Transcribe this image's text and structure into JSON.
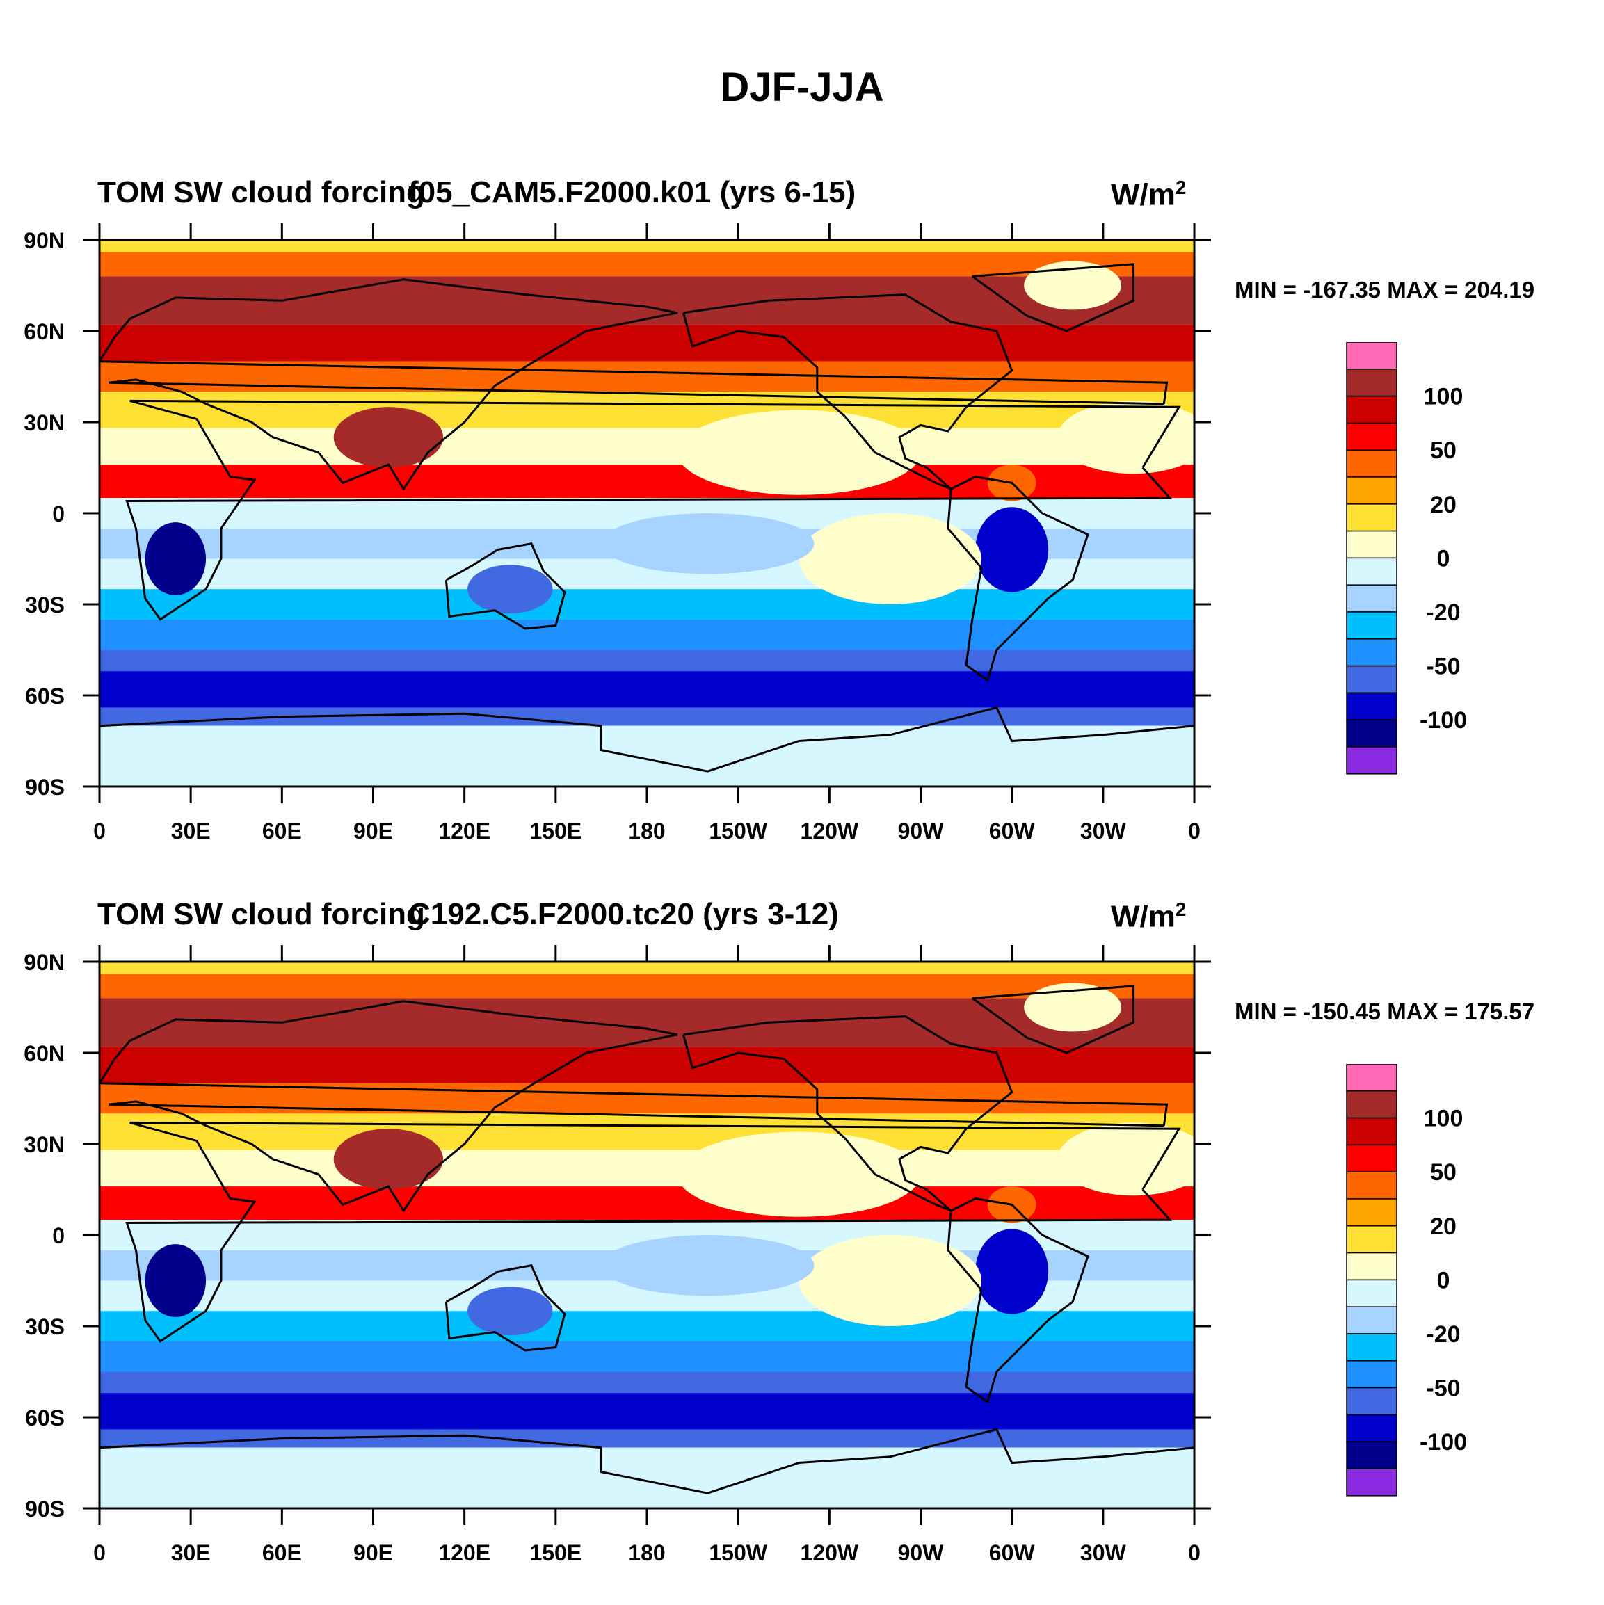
{
  "title": "DJF-JJA",
  "panels": [
    {
      "variable_label": "TOM SW cloud forcing",
      "case_label": "f05_CAM5.F2000.k01 (yrs 6-15)",
      "units": "W/m",
      "units_sup": "2",
      "stats": "MIN = -167.35  MAX = 204.19"
    },
    {
      "variable_label": "TOM SW cloud forcing",
      "case_label": "C192.C5.F2000.tc20 (yrs 3-12)",
      "units": "W/m",
      "units_sup": "2",
      "stats": "MIN = -150.45  MAX = 175.57"
    }
  ],
  "axes": {
    "lat_ticks": [
      "90N",
      "60N",
      "30N",
      "0",
      "30S",
      "60S",
      "90S"
    ],
    "lon_ticks": [
      "0",
      "30E",
      "60E",
      "90E",
      "120E",
      "150E",
      "180",
      "150W",
      "120W",
      "90W",
      "60W",
      "30W",
      "0"
    ]
  },
  "colorbar": {
    "colors": [
      "#ff69b4",
      "#a52a2a",
      "#cd0000",
      "#ff0000",
      "#ff6600",
      "#ffa500",
      "#ffe135",
      "#ffffcc",
      "#d7f7ff",
      "#a6d4ff",
      "#00bfff",
      "#1e90ff",
      "#4169e1",
      "#0000cd",
      "#00008b",
      "#8a2be2"
    ],
    "labels": [
      "100",
      "50",
      "20",
      "0",
      "-20",
      "-50",
      "-100"
    ]
  }
}
